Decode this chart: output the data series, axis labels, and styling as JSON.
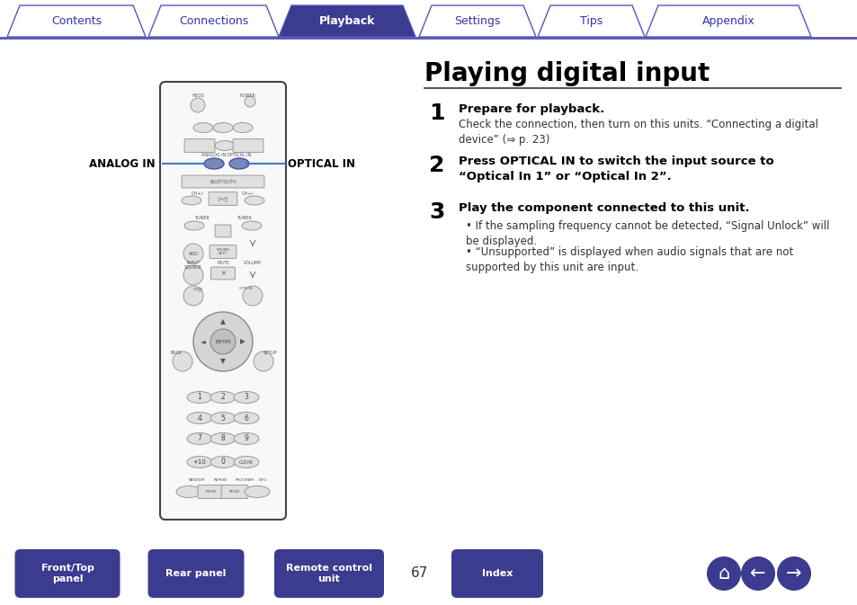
{
  "bg_color": "#ffffff",
  "tab_labels": [
    "Contents",
    "Connections",
    "Playback",
    "Settings",
    "Tips",
    "Appendix"
  ],
  "tab_active_index": 2,
  "tab_active_bg": "#3b3b8f",
  "tab_inactive_bg": "#ffffff",
  "tab_border_color": "#5555bb",
  "tab_text_color_active": "#ffffff",
  "tab_text_color_inactive": "#3333aa",
  "title": "Playing digital input",
  "title_color": "#000000",
  "title_fontsize": 20,
  "step1_num": "1",
  "step1_heading": "Prepare for playback.",
  "step1_body": "Check the connection, then turn on this units. “Connecting a digital\ndevice” (⇒ p. 23)",
  "step2_num": "2",
  "step2_heading": "Press OPTICAL IN to switch the input source to\n“Optical In 1” or “Optical In 2”.",
  "step3_num": "3",
  "step3_heading": "Play the component connected to this unit.",
  "step3_bullet1": "If the sampling frequency cannot be detected, “Signal Unlock” will\nbe displayed.",
  "step3_bullet2": "“Unsupported” is displayed when audio signals that are not\nsupported by this unit are input.",
  "analog_label": "ANALOG IN",
  "optical_label": "OPTICAL IN",
  "label_color": "#000000",
  "line_color": "#4477cc",
  "footer_buttons": [
    "Front/Top\npanel",
    "Rear panel",
    "Remote control\nunit",
    "Index"
  ],
  "footer_page": "67",
  "footer_btn_color": "#3b3b8f",
  "footer_btn_text_color": "#ffffff",
  "heading_color": "#000000",
  "step_num_color": "#3333aa",
  "body_color": "#333333",
  "divider_color": "#333333",
  "remote_bg": "#f8f8f8",
  "remote_border": "#555555"
}
